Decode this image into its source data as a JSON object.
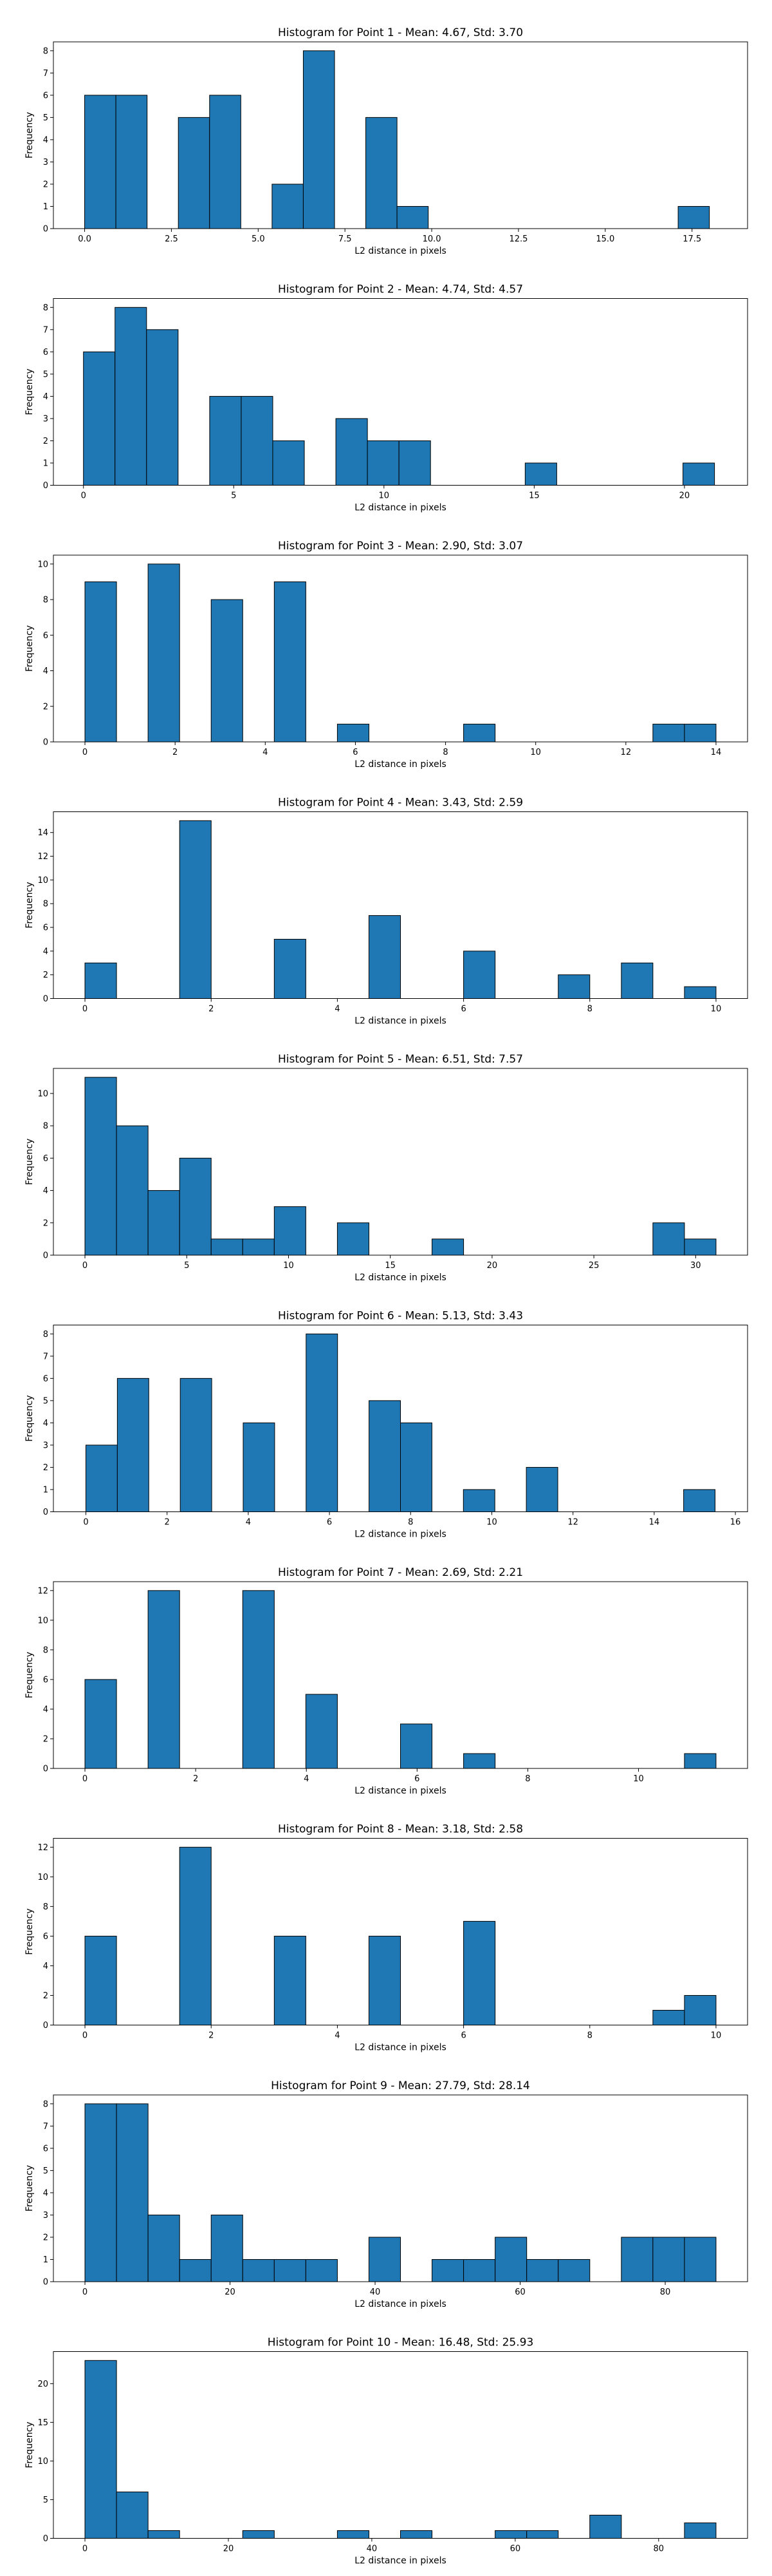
{
  "chart_data": [
    {
      "type": "bar",
      "title": "Histogram for Point 1 - Mean: 4.67, Std: 3.70",
      "xlabel": "L2 distance in pixels",
      "ylabel": "Frequency",
      "xlim": [
        -0.9,
        19.1
      ],
      "ylim": [
        0,
        8.4
      ],
      "xticks": [
        0.0,
        2.5,
        5.0,
        7.5,
        10.0,
        12.5,
        15.0,
        17.5
      ],
      "xtick_labels": [
        "0.0",
        "2.5",
        "5.0",
        "7.5",
        "10.0",
        "12.5",
        "15.0",
        "17.5"
      ],
      "yticks": [
        0,
        1,
        2,
        3,
        4,
        5,
        6,
        7,
        8
      ],
      "bin_start": 0.0,
      "bin_width": 0.9,
      "values": [
        6,
        6,
        0,
        5,
        6,
        0,
        2,
        8,
        0,
        5,
        1,
        0,
        0,
        0,
        0,
        0,
        0,
        0,
        0,
        1
      ],
      "color": "#1f77b4"
    },
    {
      "type": "bar",
      "title": "Histogram for Point 2 - Mean: 4.74, Std: 4.57",
      "xlabel": "L2 distance in pixels",
      "ylabel": "Frequency",
      "xlim": [
        -1.0,
        22.1
      ],
      "ylim": [
        0,
        8.4
      ],
      "xticks": [
        0,
        5,
        10,
        15,
        20
      ],
      "xtick_labels": [
        "0",
        "5",
        "10",
        "15",
        "20"
      ],
      "yticks": [
        0,
        1,
        2,
        3,
        4,
        5,
        6,
        7,
        8
      ],
      "bin_start": 0.0,
      "bin_width": 1.05,
      "values": [
        6,
        8,
        7,
        0,
        4,
        4,
        2,
        0,
        3,
        2,
        2,
        0,
        0,
        0,
        1,
        0,
        0,
        0,
        0,
        1
      ],
      "color": "#1f77b4"
    },
    {
      "type": "bar",
      "title": "Histogram for Point 3 - Mean: 2.90, Std: 3.07",
      "xlabel": "L2 distance in pixels",
      "ylabel": "Frequency",
      "xlim": [
        -0.7,
        14.7
      ],
      "ylim": [
        0,
        10.5
      ],
      "xticks": [
        0,
        2,
        4,
        6,
        8,
        10,
        12,
        14
      ],
      "xtick_labels": [
        "0",
        "2",
        "4",
        "6",
        "8",
        "10",
        "12",
        "14"
      ],
      "yticks": [
        0,
        2,
        4,
        6,
        8,
        10
      ],
      "bin_start": 0.0,
      "bin_width": 0.7,
      "values": [
        9,
        0,
        10,
        0,
        8,
        0,
        9,
        0,
        1,
        0,
        0,
        0,
        1,
        0,
        0,
        0,
        0,
        0,
        1,
        1
      ],
      "color": "#1f77b4"
    },
    {
      "type": "bar",
      "title": "Histogram for Point 4 - Mean: 3.43, Std: 2.59",
      "xlabel": "L2 distance in pixels",
      "ylabel": "Frequency",
      "xlim": [
        -0.5,
        10.5
      ],
      "ylim": [
        0,
        15.75
      ],
      "xticks": [
        0,
        2,
        4,
        6,
        8,
        10
      ],
      "xtick_labels": [
        "0",
        "2",
        "4",
        "6",
        "8",
        "10"
      ],
      "yticks": [
        0,
        2,
        4,
        6,
        8,
        10,
        12,
        14
      ],
      "bin_start": 0.0,
      "bin_width": 0.5,
      "values": [
        3,
        0,
        0,
        15,
        0,
        0,
        5,
        0,
        0,
        7,
        0,
        0,
        4,
        0,
        0,
        2,
        0,
        3,
        0,
        1
      ],
      "color": "#1f77b4"
    },
    {
      "type": "bar",
      "title": "Histogram for Point 5 - Mean: 6.51, Std: 7.57",
      "xlabel": "L2 distance in pixels",
      "ylabel": "Frequency",
      "xlim": [
        -1.55,
        32.55
      ],
      "ylim": [
        0,
        11.55
      ],
      "xticks": [
        0,
        5,
        10,
        15,
        20,
        25,
        30
      ],
      "xtick_labels": [
        "0",
        "5",
        "10",
        "15",
        "20",
        "25",
        "30"
      ],
      "yticks": [
        0,
        2,
        4,
        6,
        8,
        10
      ],
      "bin_start": 0.0,
      "bin_width": 1.55,
      "values": [
        11,
        8,
        4,
        6,
        1,
        1,
        3,
        0,
        2,
        0,
        0,
        1,
        0,
        0,
        0,
        0,
        0,
        0,
        2,
        1
      ],
      "color": "#1f77b4"
    },
    {
      "type": "bar",
      "title": "Histogram for Point 6 - Mean: 5.13, Std: 3.43",
      "xlabel": "L2 distance in pixels",
      "ylabel": "Frequency",
      "xlim": [
        -0.8,
        16.3
      ],
      "ylim": [
        0,
        8.4
      ],
      "xticks": [
        0,
        2,
        4,
        6,
        8,
        10,
        12,
        14,
        16
      ],
      "xtick_labels": [
        "0",
        "2",
        "4",
        "6",
        "8",
        "10",
        "12",
        "14",
        "16"
      ],
      "yticks": [
        0,
        1,
        2,
        3,
        4,
        5,
        6,
        7,
        8
      ],
      "bin_start": 0.0,
      "bin_width": 0.775,
      "values": [
        3,
        6,
        0,
        6,
        0,
        4,
        0,
        8,
        0,
        5,
        4,
        0,
        1,
        0,
        2,
        0,
        0,
        0,
        0,
        1
      ],
      "color": "#1f77b4"
    },
    {
      "type": "bar",
      "title": "Histogram for Point 7 - Mean: 2.69, Std: 2.21",
      "xlabel": "L2 distance in pixels",
      "ylabel": "Frequency",
      "xlim": [
        -0.57,
        11.97
      ],
      "ylim": [
        0,
        12.6
      ],
      "xticks": [
        0,
        2,
        4,
        6,
        8,
        10
      ],
      "xtick_labels": [
        "0",
        "2",
        "4",
        "6",
        "8",
        "10"
      ],
      "yticks": [
        0,
        2,
        4,
        6,
        8,
        10,
        12
      ],
      "bin_start": 0.0,
      "bin_width": 0.57,
      "values": [
        6,
        0,
        12,
        0,
        0,
        12,
        0,
        5,
        0,
        0,
        3,
        0,
        1,
        0,
        0,
        0,
        0,
        0,
        0,
        1
      ],
      "color": "#1f77b4"
    },
    {
      "type": "bar",
      "title": "Histogram for Point 8 - Mean: 3.18, Std: 2.58",
      "xlabel": "L2 distance in pixels",
      "ylabel": "Frequency",
      "xlim": [
        -0.5,
        10.5
      ],
      "ylim": [
        0,
        12.6
      ],
      "xticks": [
        0,
        2,
        4,
        6,
        8,
        10
      ],
      "xtick_labels": [
        "0",
        "2",
        "4",
        "6",
        "8",
        "10"
      ],
      "yticks": [
        0,
        2,
        4,
        6,
        8,
        10,
        12
      ],
      "bin_start": 0.0,
      "bin_width": 0.5,
      "values": [
        6,
        0,
        0,
        12,
        0,
        0,
        6,
        0,
        0,
        6,
        0,
        0,
        7,
        0,
        0,
        0,
        0,
        0,
        1,
        2
      ],
      "color": "#1f77b4"
    },
    {
      "type": "bar",
      "title": "Histogram for Point 9 - Mean: 27.79, Std: 28.14",
      "xlabel": "L2 distance in pixels",
      "ylabel": "Frequency",
      "xlim": [
        -4.35,
        91.35
      ],
      "ylim": [
        0,
        8.4
      ],
      "xticks": [
        0,
        20,
        40,
        60,
        80
      ],
      "xtick_labels": [
        "0",
        "20",
        "40",
        "60",
        "80"
      ],
      "yticks": [
        0,
        1,
        2,
        3,
        4,
        5,
        6,
        7,
        8
      ],
      "bin_start": 0.0,
      "bin_width": 4.35,
      "values": [
        8,
        8,
        3,
        1,
        3,
        1,
        1,
        1,
        0,
        2,
        0,
        1,
        1,
        2,
        1,
        1,
        0,
        2,
        2,
        2
      ],
      "color": "#1f77b4"
    },
    {
      "type": "bar",
      "title": "Histogram for Point 10 - Mean: 16.48, Std: 25.93",
      "xlabel": "L2 distance in pixels",
      "ylabel": "Frequency",
      "xlim": [
        -4.4,
        92.4
      ],
      "ylim": [
        0,
        24.15
      ],
      "xticks": [
        0,
        20,
        40,
        60,
        80
      ],
      "xtick_labels": [
        "0",
        "20",
        "40",
        "60",
        "80"
      ],
      "yticks": [
        0,
        5,
        10,
        15,
        20
      ],
      "bin_start": 0.0,
      "bin_width": 4.4,
      "values": [
        23,
        6,
        1,
        0,
        0,
        1,
        0,
        0,
        1,
        0,
        1,
        0,
        0,
        1,
        1,
        0,
        3,
        0,
        0,
        2
      ],
      "color": "#1f77b4"
    }
  ]
}
